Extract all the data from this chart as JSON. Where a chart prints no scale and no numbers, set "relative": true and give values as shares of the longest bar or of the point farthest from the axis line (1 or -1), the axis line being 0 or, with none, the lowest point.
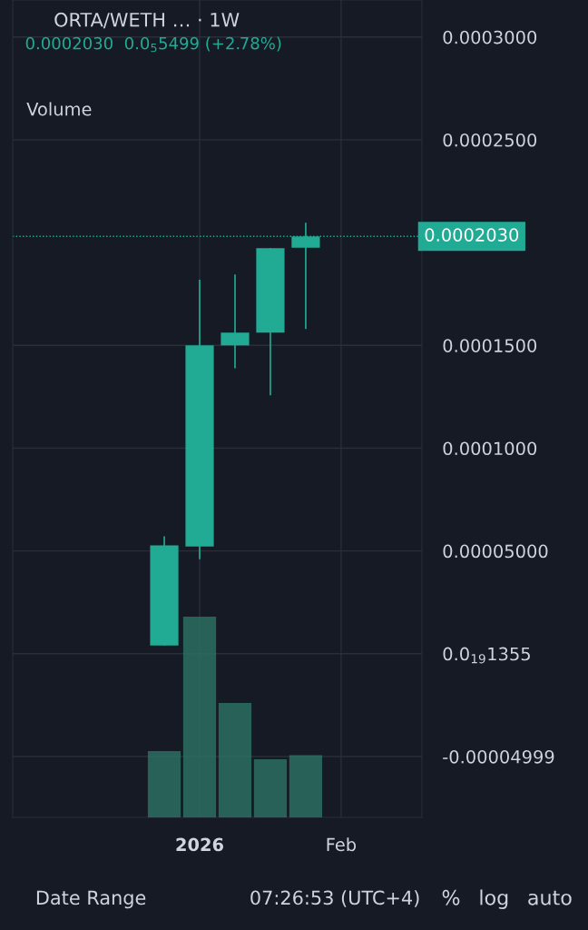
{
  "chart_data": [
    {
      "type": "candlestick",
      "title": "ORTA/WETH … · 1W",
      "subtitle": "0.0002030  0.0$_{5}$5499 (+2.78%)",
      "x": [
        "2025-12-29",
        "2026-01-05",
        "2026-01-12",
        "2026-01-19",
        "2026-01-26"
      ],
      "ohlc": [
        [
          4e-06,
          5.71e-05,
          4e-06,
          5.27e-05
        ],
        [
          5.22e-05,
          0.0001819,
          4.6e-05,
          0.00015
        ],
        [
          0.00015,
          0.0001845,
          0.0001389,
          0.0001562
        ],
        [
          0.0001562,
          0.0001973,
          0.0001257,
          0.0001973
        ],
        [
          0.0001975,
          0.0002097,
          0.000158,
          0.000203
        ]
      ],
      "color": "#22ab94",
      "xlim": [
        "2025-11-29",
        "2026-02-18"
      ],
      "xticks": [
        {
          "value": "2026-01-05",
          "label": "2026"
        },
        {
          "value": "2026-02-02",
          "label": "Feb"
        }
      ],
      "ylim": [
        -7.96e-05,
        0.000318
      ],
      "yticks": [
        {
          "value": 0.0003,
          "label": "0.0003000"
        },
        {
          "value": 0.00025,
          "label": "0.0002500"
        },
        {
          "value": 0.00015,
          "label": "0.0001500"
        },
        {
          "value": 0.0001,
          "label": "0.0001000"
        },
        {
          "value": 5e-05,
          "label": "0.00005000"
        },
        {
          "value": 0,
          "label": "0.0$_{19}$1355"
        },
        {
          "value": -4.999e-05,
          "label": "-0.00004999"
        }
      ],
      "ref_lines": [
        {
          "axis": "y",
          "value": 0.000203,
          "label": "0.0002030",
          "color": "#22ab94",
          "line_style": "dotted"
        }
      ],
      "grid": true,
      "annotations": [
        "Volume",
        "Date Range",
        "07:26:53 (UTC+4)",
        "%",
        "log",
        "auto"
      ]
    },
    {
      "type": "bar",
      "relative": true,
      "categories": [
        null,
        null,
        null,
        null,
        null
      ],
      "values": [
        0.33,
        1,
        0.57,
        0.29,
        0.31
      ],
      "color": "#2b6e62"
    }
  ]
}
